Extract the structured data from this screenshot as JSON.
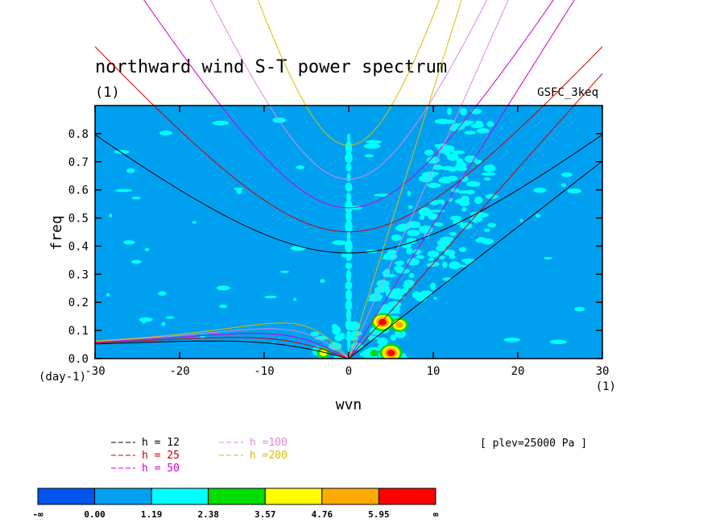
{
  "chart_data": {
    "type": "heatmap",
    "title": "northward wind S-T power spectrum",
    "subtitle_left": "(1)",
    "subtitle_right": "GSFC_3keq",
    "xlabel": "wvn",
    "ylabel": "freq",
    "x_unit_label": "(1)",
    "y_unit_label": "(day-1)",
    "xlim": [
      -30,
      30
    ],
    "ylim": [
      0,
      0.9
    ],
    "x_ticks": [
      -30,
      -20,
      -10,
      0,
      10,
      20,
      30
    ],
    "x_tick_labels": [
      "-30",
      "-20",
      "-10",
      "0",
      "10",
      "20",
      "30"
    ],
    "y_ticks": [
      0,
      0.1,
      0.2,
      0.3,
      0.4,
      0.5,
      0.6,
      0.7,
      0.8
    ],
    "y_tick_labels": [
      "0.0",
      "0.1",
      "0.2",
      "0.3",
      "0.4",
      "0.5",
      "0.6",
      "0.7",
      "0.8"
    ],
    "annotation": "[ plev=25000 Pa ]",
    "dispersion_curves": [
      {
        "label": "h = 12",
        "h": 12,
        "color": "#000000"
      },
      {
        "label": "h = 25",
        "h": 25,
        "color": "#cc0000"
      },
      {
        "label": "h = 50",
        "h": 50,
        "color": "#cc00cc"
      },
      {
        "label": "h =100",
        "h": 100,
        "color": "#dd88dd"
      },
      {
        "label": "h =200",
        "h": 200,
        "color": "#ddbb00"
      }
    ],
    "color_levels": [
      "-∞",
      "0.00",
      "1.19",
      "2.38",
      "3.57",
      "4.76",
      "5.95",
      "∞"
    ],
    "color_fills": [
      "#0055ee",
      "#00a0f0",
      "#00ffff",
      "#00dd00",
      "#ffff00",
      "#ffaa00",
      "#ff0000"
    ],
    "highlights": [
      {
        "wvn": 4,
        "freq": 0.13,
        "level": 6
      },
      {
        "wvn": 6,
        "freq": 0.12,
        "level": 5
      },
      {
        "wvn": 5,
        "freq": 0.02,
        "level": 6
      },
      {
        "wvn": -3,
        "freq": 0.02,
        "level": 4
      },
      {
        "wvn": 3,
        "freq": 0.02,
        "level": 3
      }
    ]
  }
}
